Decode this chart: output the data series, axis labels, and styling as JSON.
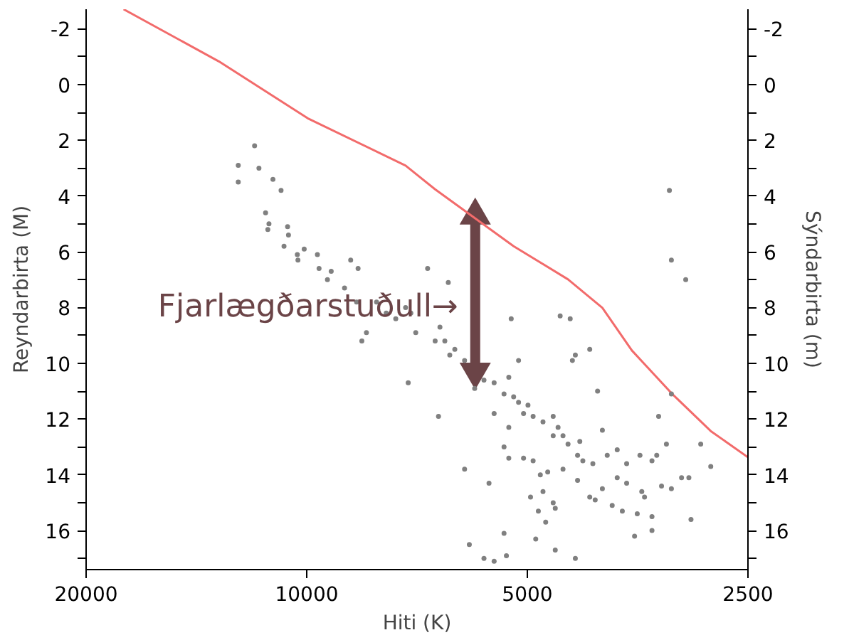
{
  "chart_data": {
    "type": "scatter",
    "xlabel": "Hiti (K)",
    "ylabel": "Reyndarbirta (M)",
    "y2label": "Sýndarbirta (m)",
    "log": "x",
    "grid": false,
    "xlim": [
      20000,
      2500
    ],
    "xticks": [
      20000,
      10000,
      5000,
      2500
    ],
    "ylim": [
      17.4,
      -2.7
    ],
    "yticks": [
      -2,
      {
        "value": -1,
        "label": null
      },
      0,
      {
        "value": 1,
        "label": null
      },
      2,
      {
        "value": 3,
        "label": null
      },
      4,
      {
        "value": 5,
        "label": null
      },
      6,
      {
        "value": 7,
        "label": null
      },
      8,
      {
        "value": 9,
        "label": null
      },
      10,
      {
        "value": 11,
        "label": null
      },
      12,
      {
        "value": 13,
        "label": null
      },
      14,
      {
        "value": 15,
        "label": null
      },
      16,
      {
        "value": 17,
        "label": null
      }
    ],
    "y2lim": [
      17.4,
      -2.7
    ],
    "y2ticks": [
      -2,
      {
        "value": -1,
        "label": null
      },
      0,
      {
        "value": 1,
        "label": null
      },
      2,
      {
        "value": 3,
        "label": null
      },
      4,
      {
        "value": 5,
        "label": null
      },
      6,
      {
        "value": 7,
        "label": null
      },
      8,
      {
        "value": 9,
        "label": null
      },
      10,
      {
        "value": 11,
        "label": null
      },
      12,
      {
        "value": 13,
        "label": null
      },
      14,
      {
        "value": 15,
        "label": null
      },
      16,
      {
        "value": 17,
        "label": null
      }
    ],
    "annotations": [
      {
        "text": "Fjarlægðarstuðull→",
        "x": 5890,
        "y": 8
      }
    ],
    "series": [
      {
        "type": "line",
        "marker": "triangle",
        "line_style": "solid",
        "color": "#6b4447",
        "x": [
          5890,
          5890
        ],
        "values": [
          4.7,
          10.3
        ]
      },
      {
        "type": "line",
        "marker": "none",
        "line_style": "solid",
        "color": "#f26b6b",
        "x": [
          17780,
          13180,
          9970,
          7330,
          6680,
          5220,
          4400,
          3950,
          3600,
          3180,
          2810,
          2500
        ],
        "values": [
          -2.7,
          -0.83,
          1.21,
          2.91,
          3.76,
          5.8,
          6.99,
          8.01,
          9.54,
          11.07,
          12.43,
          13.37
        ]
      },
      {
        "marker": "circle",
        "color": "#808080",
        "x": [
          12400,
          12400,
          11780,
          11620,
          11120,
          10840,
          11380,
          11260,
          11300,
          10620,
          10590,
          10740,
          10080,
          10300,
          10280,
          9670,
          9620,
          9260,
          9370,
          8710,
          8510,
          8880,
          8550,
          8290,
          8410,
          8030,
          7790,
          7560,
          7330,
          7210,
          7100,
          6840,
          6410,
          6580,
          6680,
          6480,
          6280,
          6380,
          6090,
          5730,
          5550,
          5380,
          5300,
          5140,
          5260,
          5140,
          5220,
          5060,
          4910,
          4760,
          4610,
          4540,
          4470,
          4370,
          4510,
          4300,
          4340,
          4110,
          4010,
          7270,
          6610,
          6090,
          5900,
          5550,
          5300,
          5380,
          5300,
          5060,
          4910,
          4800,
          4690,
          4610,
          4400,
          4270,
          4200,
          4070,
          3950,
          3890,
          3770,
          3660,
          3510,
          3380,
          3310,
          3230,
          3330,
          3280,
          3180,
          3080,
          3010,
          2990,
          2900,
          2810,
          3180,
          3200,
          3180,
          3040,
          3770,
          3830,
          3710,
          3540,
          3490,
          3380,
          3570,
          3380,
          3460,
          3950,
          4110,
          4270,
          4610,
          4760,
          4830,
          4580,
          4720,
          4950,
          4870,
          4580,
          4300,
          5380,
          5340,
          5730,
          5550,
          6000,
          5640,
          4470,
          4240,
          4040,
          3660,
          4990
        ],
        "values": [
          2.9,
          3.5,
          2.2,
          3.0,
          3.4,
          3.8,
          4.6,
          5.0,
          5.2,
          5.1,
          5.4,
          5.8,
          5.9,
          6.1,
          6.3,
          6.1,
          6.6,
          6.7,
          7.0,
          6.3,
          6.6,
          7.3,
          7.8,
          8.9,
          9.2,
          7.8,
          8.2,
          8.4,
          8.0,
          8.2,
          8.9,
          6.6,
          7.1,
          8.7,
          9.2,
          9.2,
          9.5,
          9.7,
          9.9,
          10.6,
          10.7,
          11.1,
          10.5,
          9.9,
          8.4,
          11.4,
          11.2,
          11.8,
          11.9,
          12.1,
          11.9,
          12.3,
          12.6,
          8.4,
          8.3,
          9.7,
          9.9,
          9.5,
          11.0,
          10.7,
          11.9,
          13.8,
          10.9,
          11.8,
          12.3,
          13.0,
          13.4,
          13.4,
          13.5,
          14.0,
          13.9,
          12.6,
          12.9,
          13.3,
          13.5,
          13.6,
          12.4,
          13.3,
          13.1,
          13.6,
          13.3,
          13.5,
          11.9,
          12.9,
          13.3,
          14.4,
          14.5,
          14.1,
          14.1,
          15.6,
          12.9,
          13.7,
          11.1,
          3.8,
          6.3,
          7.0,
          14.1,
          15.1,
          15.3,
          15.4,
          14.6,
          15.5,
          16.2,
          16.0,
          14.8,
          14.5,
          14.8,
          14.2,
          15.0,
          14.6,
          15.3,
          15.2,
          15.7,
          14.8,
          16.3,
          16.7,
          17.0,
          16.1,
          16.9,
          17.0,
          17.1,
          16.5,
          14.3,
          13.8,
          12.8,
          14.9,
          14.3,
          11.5
        ]
      }
    ]
  }
}
